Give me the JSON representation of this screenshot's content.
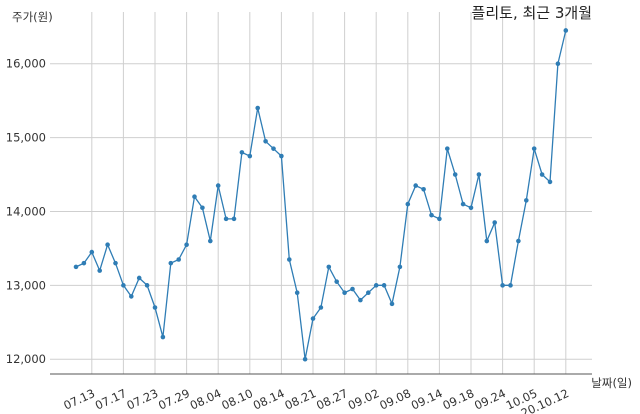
{
  "chart_data": {
    "type": "line",
    "title": "플리토, 최근 3개월",
    "ylabel": "주가(원)",
    "xlabel": "날짜(일)",
    "ylim": [
      11800,
      16700
    ],
    "yticks": [
      12000,
      13000,
      14000,
      15000,
      16000
    ],
    "ytick_labels": [
      "12,000",
      "13,000",
      "14,000",
      "15,000",
      "16,000"
    ],
    "xtick_labels": [
      "07.13",
      "07.17",
      "07.23",
      "07.29",
      "08.04",
      "08.10",
      "08.14",
      "08.21",
      "08.27",
      "09.02",
      "09.08",
      "09.14",
      "09.18",
      "09.24",
      "10.05",
      "20.10.12"
    ],
    "xtick_positions": [
      2,
      6,
      10,
      14,
      18,
      22,
      26,
      30,
      34,
      38,
      42,
      46,
      50,
      54,
      58,
      62
    ],
    "grid": true,
    "line_color": "#2f7db5",
    "series": [
      {
        "values": [
          13250,
          13300,
          13450,
          13200,
          13550,
          13300,
          13000,
          12850,
          13100,
          13000,
          12700,
          12300,
          13300,
          13350,
          13550,
          14200,
          14050,
          13600,
          14350,
          13900,
          13900,
          14800,
          14750,
          15400,
          14950,
          14850,
          14750,
          13350,
          12900,
          12000,
          12550,
          12700,
          13250,
          13050,
          12900,
          12950,
          12800,
          12900,
          13000,
          13000,
          12750,
          13250,
          14100,
          14350,
          14300,
          13950,
          13900,
          14850,
          14500,
          14100,
          14050,
          14500,
          13600,
          13850,
          13000,
          13000,
          13600,
          14150,
          14850,
          14500,
          14400,
          16000,
          16450
        ]
      }
    ]
  }
}
